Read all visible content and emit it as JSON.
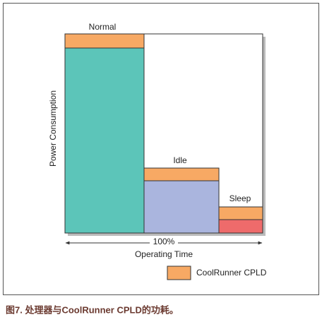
{
  "diagram": {
    "blocks": [
      {
        "label": "Normal"
      },
      {
        "label": "Idle"
      },
      {
        "label": "Sleep"
      }
    ],
    "y_axis_label": "Power Consumption",
    "x_axis_range_label": "100%",
    "x_axis_label": "Operating Time",
    "legend": "CoolRunner CPLD",
    "caption": "图7. 处理器与CoolRunner CPLD的功耗。"
  }
}
